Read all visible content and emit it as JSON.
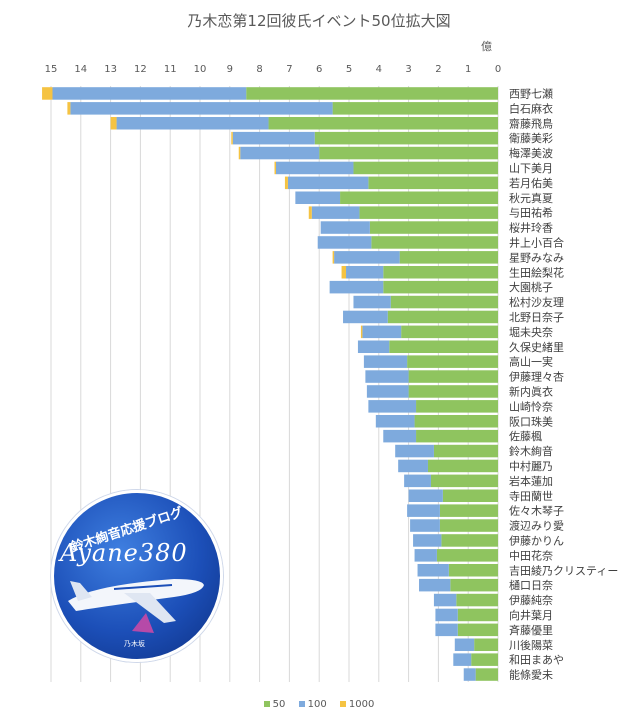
{
  "chart_data": {
    "type": "bar",
    "orientation": "horizontal",
    "stacked": true,
    "title": "乃木恋第12回彼氏イベント50位拡大図",
    "unit_label": "億",
    "xlim": [
      0,
      15
    ],
    "x_reversed": true,
    "xticks": [
      15,
      14,
      13,
      12,
      11,
      10,
      9,
      8,
      7,
      6,
      5,
      4,
      3,
      2,
      1,
      0
    ],
    "grid": true,
    "legend_position": "bottom",
    "categories": [
      "西野七瀬",
      "白石麻衣",
      "齋藤飛鳥",
      "衛藤美彩",
      "梅澤美波",
      "山下美月",
      "若月佑美",
      "秋元真夏",
      "与田祐希",
      "桜井玲香",
      "井上小百合",
      "星野みなみ",
      "生田絵梨花",
      "大園桃子",
      "松村沙友理",
      "北野日奈子",
      "堀未央奈",
      "久保史緒里",
      "高山一実",
      "伊藤理々杏",
      "新内眞衣",
      "山崎怜奈",
      "阪口珠美",
      "佐藤楓",
      "鈴木絢音",
      "中村麗乃",
      "岩本蓮加",
      "寺田蘭世",
      "佐々木琴子",
      "渡辺みり愛",
      "伊藤かりん",
      "中田花奈",
      "吉田綾乃クリスティー",
      "樋口日奈",
      "伊藤純奈",
      "向井葉月",
      "斉藤優里",
      "川後陽菜",
      "和田まあや",
      "能條愛未"
    ],
    "series": [
      {
        "name": "50",
        "color": "#8fc45f",
        "values": [
          8.45,
          5.55,
          7.7,
          6.15,
          6.0,
          4.85,
          4.35,
          5.3,
          4.65,
          4.3,
          4.25,
          3.3,
          3.85,
          3.85,
          3.6,
          3.7,
          3.25,
          3.65,
          3.05,
          3.0,
          3.0,
          2.75,
          2.8,
          2.75,
          2.15,
          2.35,
          2.25,
          1.85,
          1.95,
          1.95,
          1.9,
          2.05,
          1.65,
          1.6,
          1.4,
          1.35,
          1.35,
          0.8,
          0.9,
          0.75
        ]
      },
      {
        "name": "100",
        "color": "#7eaadd",
        "values": [
          6.5,
          8.8,
          5.1,
          2.75,
          2.65,
          2.6,
          2.7,
          1.5,
          1.6,
          1.65,
          1.8,
          2.2,
          1.25,
          1.8,
          1.25,
          1.5,
          1.3,
          1.05,
          1.45,
          1.45,
          1.4,
          1.6,
          1.3,
          1.1,
          1.3,
          1.0,
          0.9,
          1.15,
          1.1,
          1.0,
          0.95,
          0.75,
          1.05,
          1.05,
          0.75,
          0.75,
          0.75,
          0.65,
          0.6,
          0.4
        ]
      },
      {
        "name": "1000",
        "color": "#f5c342",
        "values": [
          0.35,
          0.1,
          0.2,
          0.05,
          0.05,
          0.05,
          0.1,
          0.0,
          0.1,
          0.0,
          0.0,
          0.05,
          0.15,
          0.0,
          0.0,
          0.0,
          0.05,
          0.0,
          0.0,
          0.0,
          0.0,
          0.0,
          0.0,
          0.0,
          0.0,
          0.0,
          0.0,
          0.0,
          0.0,
          0.0,
          0.0,
          0.0,
          0.0,
          0.0,
          0.0,
          0.0,
          0.0,
          0.0,
          0.0,
          0.0
        ]
      }
    ]
  },
  "logo": {
    "top_text": "鈴木絢音応援ブログ",
    "main_text": "Ayane380",
    "foot_text": "乃木坂"
  }
}
